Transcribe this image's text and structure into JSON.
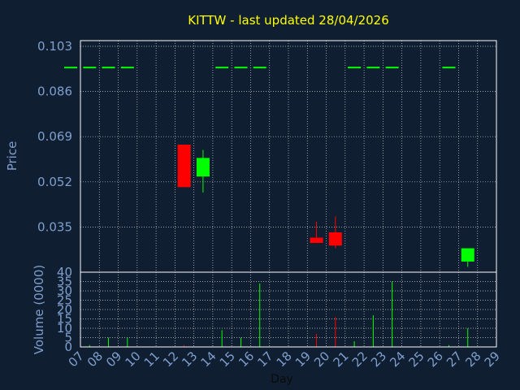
{
  "chart_data": {
    "type": "candlestick",
    "title": "KITTW - last updated 28/04/2026",
    "xlabel": "Day",
    "ylabel": "Price",
    "volume_label": "Volume (0000)",
    "grid": true,
    "days": [
      "07",
      "08",
      "09",
      "10",
      "11",
      "12",
      "13",
      "14",
      "15",
      "16",
      "17",
      "18",
      "19",
      "20",
      "21",
      "22",
      "23",
      "24",
      "25",
      "26",
      "27",
      "28",
      "29"
    ],
    "price_ticks": [
      "0.103",
      "0.086",
      "0.069",
      "0.052",
      "0.035"
    ],
    "volume_ticks": [
      "40",
      "35",
      "30",
      "25",
      "20",
      "15",
      "10",
      "5",
      "0"
    ],
    "price_ylim": [
      0.018,
      0.103
    ],
    "volume_ylim": [
      0,
      40
    ],
    "colors": {
      "up": "#00ff00",
      "down": "#ff0000",
      "flat": "#00ff00",
      "title": "#ffff00",
      "axis_text": "#7f9fcf"
    },
    "candles": [
      {
        "day": "07",
        "open": 0.095,
        "high": 0.095,
        "low": 0.095,
        "close": 0.095
      },
      {
        "day": "08",
        "open": 0.095,
        "high": 0.095,
        "low": 0.095,
        "close": 0.095
      },
      {
        "day": "09",
        "open": 0.095,
        "high": 0.095,
        "low": 0.095,
        "close": 0.095
      },
      {
        "day": "10",
        "open": 0.095,
        "high": 0.095,
        "low": 0.095,
        "close": 0.095
      },
      {
        "day": "13",
        "open": 0.066,
        "high": 0.066,
        "low": 0.05,
        "close": 0.05
      },
      {
        "day": "14",
        "open": 0.054,
        "high": 0.064,
        "low": 0.048,
        "close": 0.061
      },
      {
        "day": "15",
        "open": 0.095,
        "high": 0.095,
        "low": 0.095,
        "close": 0.095
      },
      {
        "day": "16",
        "open": 0.095,
        "high": 0.095,
        "low": 0.095,
        "close": 0.095
      },
      {
        "day": "17",
        "open": 0.095,
        "high": 0.095,
        "low": 0.095,
        "close": 0.095
      },
      {
        "day": "20",
        "open": 0.031,
        "high": 0.037,
        "low": 0.029,
        "close": 0.029
      },
      {
        "day": "21",
        "open": 0.033,
        "high": 0.039,
        "low": 0.027,
        "close": 0.028
      },
      {
        "day": "22",
        "open": 0.095,
        "high": 0.095,
        "low": 0.095,
        "close": 0.095
      },
      {
        "day": "23",
        "open": 0.095,
        "high": 0.095,
        "low": 0.095,
        "close": 0.095
      },
      {
        "day": "24",
        "open": 0.095,
        "high": 0.095,
        "low": 0.095,
        "close": 0.095
      },
      {
        "day": "27",
        "open": 0.095,
        "high": 0.095,
        "low": 0.095,
        "close": 0.095
      },
      {
        "day": "28",
        "open": 0.022,
        "high": 0.027,
        "low": 0.02,
        "close": 0.027
      }
    ],
    "volumes": [
      {
        "day": "08",
        "value": 1,
        "dir": "up"
      },
      {
        "day": "09",
        "value": 5,
        "dir": "up"
      },
      {
        "day": "10",
        "value": 5,
        "dir": "up"
      },
      {
        "day": "13",
        "value": 1,
        "dir": "down"
      },
      {
        "day": "15",
        "value": 9,
        "dir": "up"
      },
      {
        "day": "16",
        "value": 5,
        "dir": "up"
      },
      {
        "day": "17",
        "value": 34,
        "dir": "up"
      },
      {
        "day": "20",
        "value": 7,
        "dir": "down"
      },
      {
        "day": "21",
        "value": 16,
        "dir": "down"
      },
      {
        "day": "22",
        "value": 3,
        "dir": "up"
      },
      {
        "day": "23",
        "value": 17,
        "dir": "up"
      },
      {
        "day": "24",
        "value": 35,
        "dir": "up"
      },
      {
        "day": "27",
        "value": 1,
        "dir": "up"
      },
      {
        "day": "28",
        "value": 10,
        "dir": "up"
      }
    ]
  }
}
